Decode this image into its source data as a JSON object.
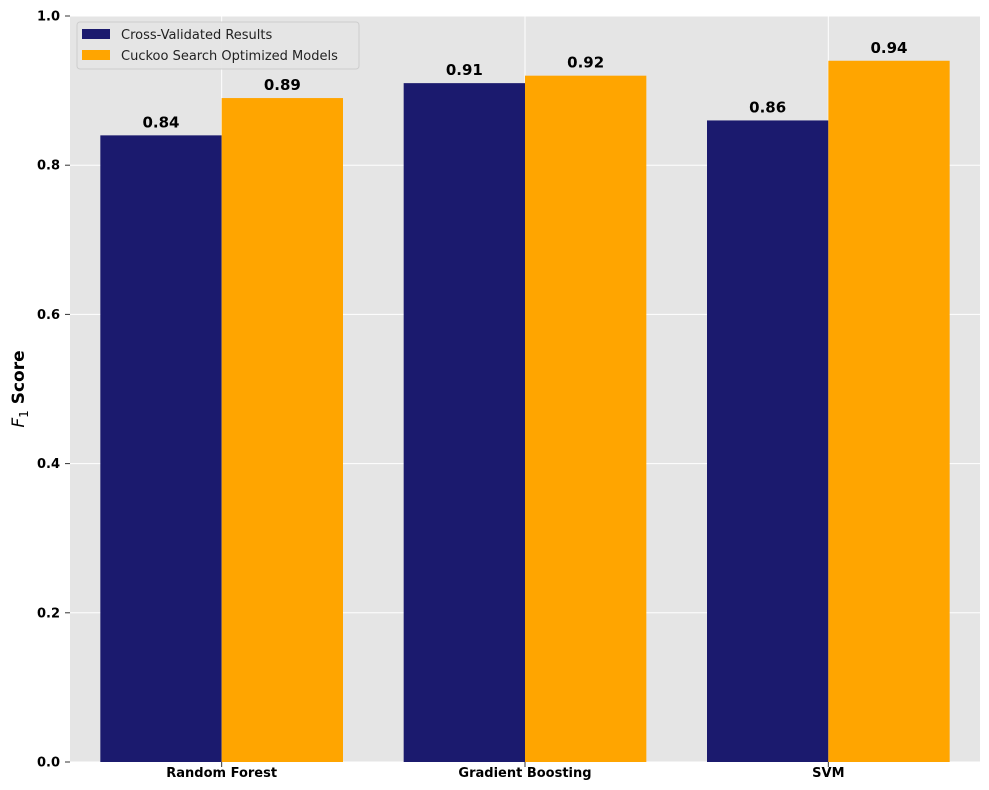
{
  "chart_data": {
    "type": "bar",
    "categories": [
      "Random Forest",
      "Gradient Boosting",
      "SVM"
    ],
    "series": [
      {
        "name": "Cross-Validated Results",
        "values": [
          0.84,
          0.91,
          0.86
        ],
        "color": "#1b1a6e"
      },
      {
        "name": "Cuckoo Search Optimized Models",
        "values": [
          0.89,
          0.92,
          0.94
        ],
        "color": "#ffa500"
      }
    ],
    "data_labels": [
      [
        "0.84",
        "0.91",
        "0.86"
      ],
      [
        "0.89",
        "0.92",
        "0.94"
      ]
    ],
    "title": "",
    "xlabel": "",
    "ylabel": {
      "italic_var": "F",
      "subscript": "1",
      "rest": " Score"
    },
    "ylim": [
      0,
      1.0
    ],
    "yticks": [
      0.0,
      0.2,
      0.4,
      0.6,
      0.8,
      1.0
    ],
    "ytick_labels": [
      "0.0",
      "0.2",
      "0.4",
      "0.6",
      "0.8",
      "1.0"
    ],
    "grid": true,
    "legend_position": "top-left",
    "colors": {
      "background": "#e5e5e5",
      "grid": "#ffffff"
    }
  }
}
